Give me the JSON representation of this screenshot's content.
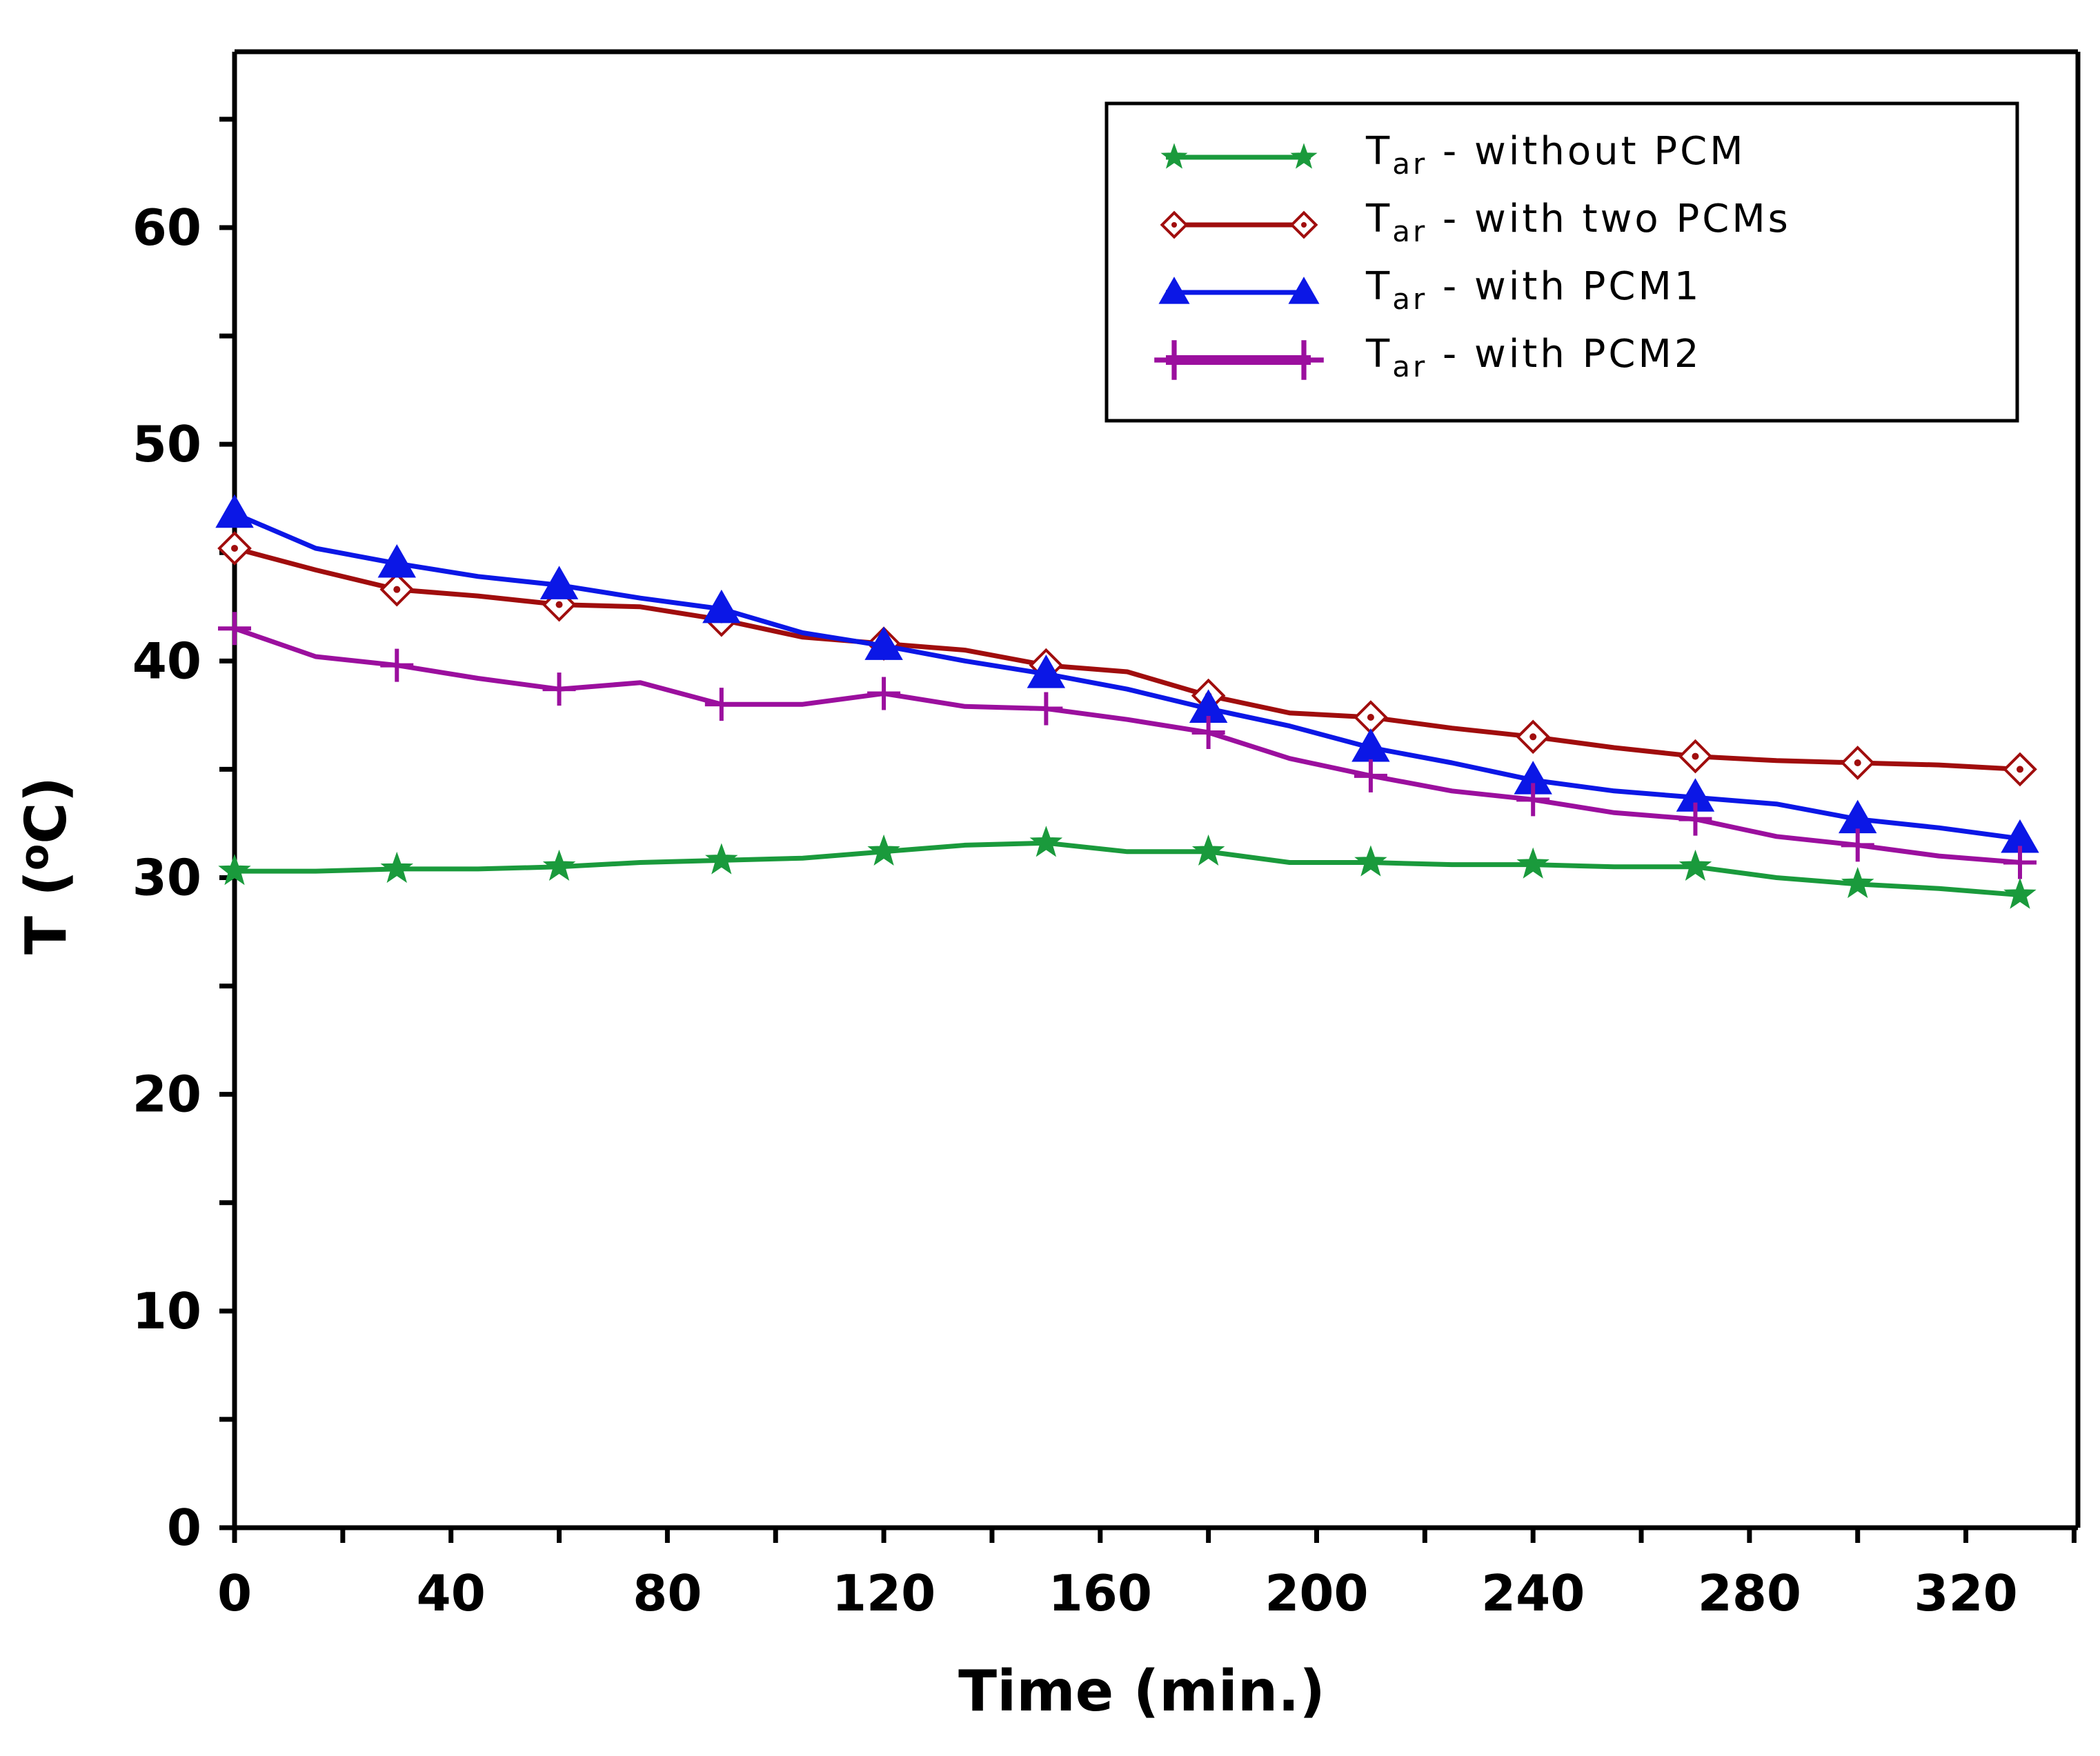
{
  "chart_data": {
    "type": "line",
    "title": "",
    "xlabel": "Time (min.)",
    "ylabel": "T (oC)",
    "ylabel_main": "T (",
    "ylabel_sup": "o",
    "ylabel_tail": "C)",
    "xlim": [
      0,
      340
    ],
    "ylim": [
      0,
      68
    ],
    "xticks": [
      0,
      40,
      80,
      120,
      160,
      200,
      240,
      280,
      320
    ],
    "yticks": [
      0,
      10,
      20,
      30,
      40,
      50,
      60
    ],
    "grid": false,
    "legend_position": "top-right",
    "series": [
      {
        "name": "Tar - without PCM",
        "symbol_main": "T",
        "symbol_sub": "ar",
        "suffix": " - without PCM",
        "color": "#1a9a3c",
        "marker": "star",
        "x": [
          0,
          15,
          30,
          45,
          60,
          75,
          90,
          105,
          120,
          135,
          150,
          165,
          180,
          195,
          210,
          225,
          240,
          255,
          270,
          285,
          300,
          315,
          330
        ],
        "y": [
          30.3,
          30.3,
          30.4,
          30.4,
          30.5,
          30.7,
          30.8,
          30.9,
          31.2,
          31.5,
          31.6,
          31.2,
          31.2,
          30.7,
          30.7,
          30.6,
          30.6,
          30.5,
          30.5,
          30.0,
          29.7,
          29.5,
          29.2
        ],
        "marker_x": [
          0,
          30,
          60,
          90,
          120,
          150,
          180,
          210,
          240,
          270,
          300,
          330
        ]
      },
      {
        "name": "Tar - with two PCMs",
        "symbol_main": "T",
        "symbol_sub": "ar",
        "suffix": " - with two PCMs",
        "color": "#a00d0d",
        "marker": "diamond",
        "x": [
          0,
          15,
          30,
          45,
          60,
          75,
          90,
          105,
          120,
          135,
          150,
          165,
          180,
          195,
          210,
          225,
          240,
          255,
          270,
          285,
          300,
          315,
          330
        ],
        "y": [
          45.2,
          44.2,
          43.3,
          43.0,
          42.6,
          42.5,
          41.9,
          41.1,
          40.8,
          40.5,
          39.8,
          39.5,
          38.4,
          37.6,
          37.4,
          36.9,
          36.5,
          36.0,
          35.6,
          35.4,
          35.3,
          35.2,
          35.0
        ],
        "marker_x": [
          0,
          30,
          60,
          90,
          120,
          150,
          180,
          210,
          240,
          270,
          300,
          330
        ]
      },
      {
        "name": "Tar - with PCM1",
        "symbol_main": "T",
        "symbol_sub": "ar",
        "suffix": " - with PCM1",
        "color": "#0b17e6",
        "marker": "triangle",
        "x": [
          0,
          15,
          30,
          45,
          60,
          75,
          90,
          105,
          120,
          135,
          150,
          165,
          180,
          195,
          210,
          225,
          240,
          255,
          270,
          285,
          300,
          315,
          330
        ],
        "y": [
          46.8,
          45.2,
          44.5,
          43.9,
          43.5,
          42.9,
          42.4,
          41.3,
          40.7,
          40.0,
          39.4,
          38.7,
          37.8,
          37.0,
          36.0,
          35.3,
          34.5,
          34.0,
          33.7,
          33.4,
          32.7,
          32.3,
          31.8
        ],
        "marker_x": [
          0,
          30,
          60,
          90,
          120,
          150,
          180,
          210,
          240,
          270,
          300,
          330
        ]
      },
      {
        "name": "Tar - with PCM2",
        "symbol_main": "T",
        "symbol_sub": "ar",
        "suffix": " - with PCM2",
        "color": "#9b0f9e",
        "marker": "plus",
        "x": [
          0,
          15,
          30,
          45,
          60,
          75,
          90,
          105,
          120,
          135,
          150,
          165,
          180,
          195,
          210,
          225,
          240,
          255,
          270,
          285,
          300,
          315,
          330
        ],
        "y": [
          41.5,
          40.2,
          39.8,
          39.2,
          38.7,
          39.0,
          38.0,
          38.0,
          38.5,
          37.9,
          37.8,
          37.3,
          36.7,
          35.5,
          34.7,
          34.0,
          33.6,
          33.0,
          32.7,
          31.9,
          31.5,
          31.0,
          30.7
        ],
        "marker_x": [
          0,
          30,
          60,
          90,
          120,
          150,
          180,
          210,
          240,
          270,
          300,
          330
        ]
      }
    ]
  }
}
